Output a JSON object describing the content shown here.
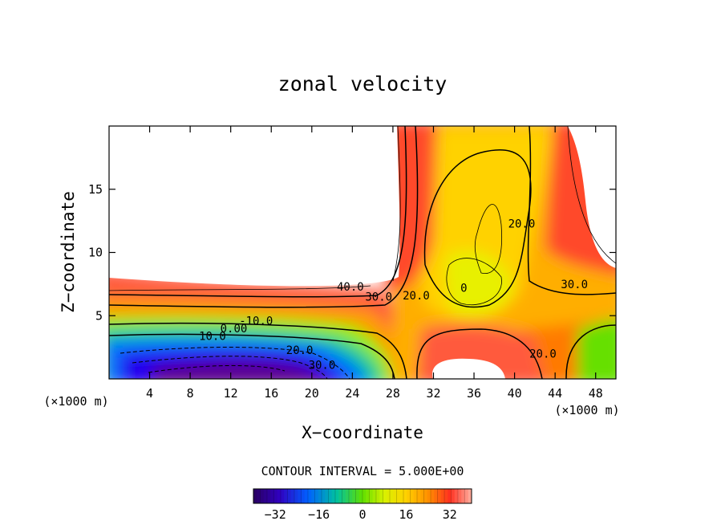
{
  "chart_data": {
    "type": "heatmap",
    "title": "zonal velocity",
    "xlabel": "X−coordinate",
    "ylabel": "Z−coordinate",
    "x_unit_left": "(×1000 m)",
    "x_unit_right": "(×1000 m)",
    "xlim": [
      0,
      50
    ],
    "ylim": [
      0,
      20
    ],
    "xticks": [
      4,
      8,
      12,
      16,
      20,
      24,
      28,
      32,
      36,
      40,
      44,
      48
    ],
    "yticks": [
      5,
      10,
      15
    ],
    "contour_labels": [
      {
        "text": "40.0",
        "x": 23.8,
        "y": 7.3
      },
      {
        "text": "30.0",
        "x": 26.6,
        "y": 6.5
      },
      {
        "text": "20.0",
        "x": 30.3,
        "y": 6.6
      },
      {
        "text": "20.0",
        "x": 40.7,
        "y": 12.3
      },
      {
        "text": "30.0",
        "x": 45.9,
        "y": 7.5
      },
      {
        "text": "0",
        "x": 35.0,
        "y": 7.2
      },
      {
        "text": "-10.0",
        "x": 14.5,
        "y": 4.6
      },
      {
        "text": "0.00",
        "x": 12.3,
        "y": 4.0
      },
      {
        "text": "10.0",
        "x": 10.2,
        "y": 3.4
      },
      {
        "text": "20.0",
        "x": 18.8,
        "y": 2.3
      },
      {
        "text": "30.0",
        "x": 21.0,
        "y": 1.1
      },
      {
        "text": "20.0",
        "x": 42.8,
        "y": 2.0
      }
    ],
    "contour_interval_text": "CONTOUR INTERVAL = 5.000E+00",
    "colorbar": {
      "min": -40,
      "max": 40,
      "ticks": [
        -32,
        -16,
        0,
        16,
        32
      ]
    },
    "grid": false
  }
}
